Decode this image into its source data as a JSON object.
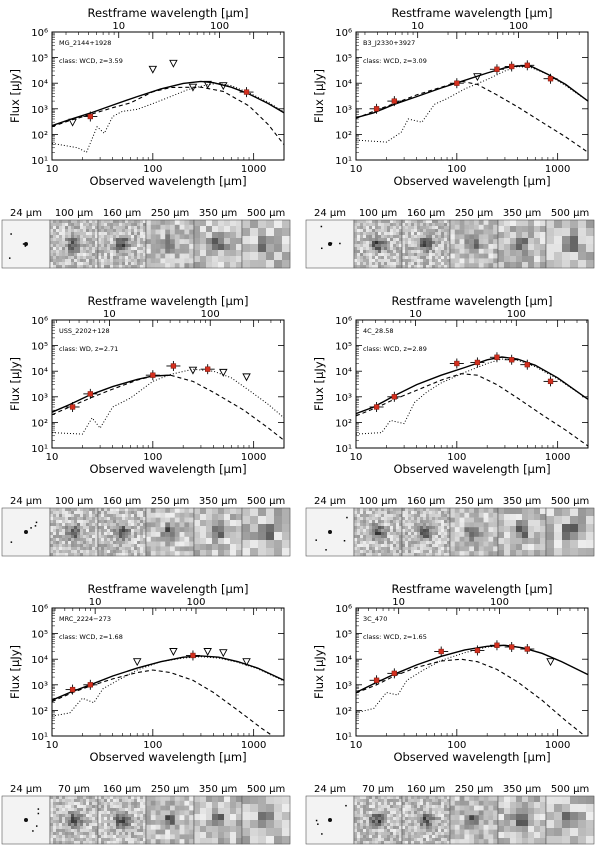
{
  "figure": {
    "axis_labels": {
      "top": "Restframe wavelength [μm]",
      "bottom": "Observed wavelength [μm]",
      "left": "Flux [μJy]"
    },
    "x_ticks": [
      "10",
      "100",
      "1000"
    ],
    "top_ticks": [
      "10",
      "100"
    ],
    "y_ticks": [
      "10¹",
      "10²",
      "10³",
      "10⁴",
      "10⁵",
      "10⁶"
    ]
  },
  "chart_data": [
    {
      "type": "scatter",
      "name": "MG_2144+1928",
      "class_text": "class: WCD, z=3.59",
      "z": 3.59,
      "xlim": [
        10,
        2000
      ],
      "ylim": [
        10,
        1000000
      ],
      "xscale": "log",
      "yscale": "log",
      "detections": [
        {
          "x": 24,
          "y": 500
        },
        {
          "x": 850,
          "y": 4500
        }
      ],
      "upper_limits": [
        {
          "x": 16,
          "y": 300
        },
        {
          "x": 100,
          "y": 35000
        },
        {
          "x": 160,
          "y": 60000
        },
        {
          "x": 250,
          "y": 7000
        },
        {
          "x": 350,
          "y": 9000
        },
        {
          "x": 500,
          "y": 8000
        }
      ],
      "total_curve": [
        [
          10,
          220
        ],
        [
          15,
          380
        ],
        [
          24,
          680
        ],
        [
          40,
          1400
        ],
        [
          70,
          3000
        ],
        [
          120,
          6000
        ],
        [
          200,
          9800
        ],
        [
          300,
          11800
        ],
        [
          400,
          10500
        ],
        [
          600,
          7000
        ],
        [
          900,
          3800
        ],
        [
          1400,
          1600
        ],
        [
          2000,
          700
        ]
      ],
      "agn_curve": [
        [
          10,
          200
        ],
        [
          15,
          350
        ],
        [
          24,
          600
        ],
        [
          40,
          1100
        ],
        [
          60,
          1700
        ],
        [
          100,
          4600
        ],
        [
          150,
          6800
        ],
        [
          300,
          7000
        ],
        [
          500,
          4800
        ],
        [
          900,
          1300
        ],
        [
          1400,
          240
        ],
        [
          2000,
          40
        ]
      ],
      "sf_curve": [
        [
          10,
          45
        ],
        [
          18,
          30
        ],
        [
          22,
          20
        ],
        [
          28,
          200
        ],
        [
          33,
          110
        ],
        [
          40,
          500
        ],
        [
          50,
          800
        ],
        [
          70,
          950
        ],
        [
          100,
          1600
        ],
        [
          150,
          3000
        ],
        [
          220,
          5500
        ],
        [
          350,
          8800
        ],
        [
          450,
          9800
        ],
        [
          600,
          8000
        ],
        [
          900,
          4200
        ],
        [
          1400,
          1800
        ],
        [
          2000,
          750
        ]
      ],
      "thumbs": [
        "24 μm",
        "100 μm",
        "160 μm",
        "250 μm",
        "350 μm",
        "500 μm"
      ]
    },
    {
      "type": "scatter",
      "name": "B3_J2330+3927",
      "class_text": "class: WCD, z=3.09",
      "z": 3.09,
      "xlim": [
        10,
        2000
      ],
      "ylim": [
        10,
        1000000
      ],
      "xscale": "log",
      "yscale": "log",
      "detections": [
        {
          "x": 16,
          "y": 1000
        },
        {
          "x": 24,
          "y": 2000
        },
        {
          "x": 100,
          "y": 10000
        },
        {
          "x": 250,
          "y": 35000
        },
        {
          "x": 350,
          "y": 45000
        },
        {
          "x": 500,
          "y": 50000
        },
        {
          "x": 850,
          "y": 15000
        }
      ],
      "upper_limits": [
        {
          "x": 160,
          "y": 18000
        }
      ],
      "total_curve": [
        [
          10,
          450
        ],
        [
          15,
          700
        ],
        [
          24,
          1500
        ],
        [
          40,
          3000
        ],
        [
          70,
          6500
        ],
        [
          120,
          13000
        ],
        [
          200,
          25000
        ],
        [
          300,
          40000
        ],
        [
          400,
          48000
        ],
        [
          550,
          45000
        ],
        [
          800,
          22000
        ],
        [
          1200,
          9000
        ],
        [
          2000,
          2000
        ]
      ],
      "agn_curve": [
        [
          10,
          420
        ],
        [
          16,
          900
        ],
        [
          24,
          1600
        ],
        [
          40,
          3500
        ],
        [
          70,
          7000
        ],
        [
          110,
          12000
        ],
        [
          160,
          9000
        ],
        [
          250,
          3500
        ],
        [
          400,
          1200
        ],
        [
          700,
          300
        ],
        [
          1200,
          80
        ],
        [
          2000,
          20
        ]
      ],
      "sf_curve": [
        [
          10,
          60
        ],
        [
          20,
          50
        ],
        [
          28,
          120
        ],
        [
          33,
          400
        ],
        [
          45,
          300
        ],
        [
          60,
          1500
        ],
        [
          80,
          2500
        ],
        [
          120,
          6000
        ],
        [
          200,
          14000
        ],
        [
          300,
          30000
        ],
        [
          400,
          45000
        ],
        [
          550,
          40000
        ],
        [
          800,
          22000
        ],
        [
          1200,
          8000
        ],
        [
          2000,
          2000
        ]
      ],
      "thumbs": [
        "24 μm",
        "100 μm",
        "160 μm",
        "250 μm",
        "350 μm",
        "500 μm"
      ]
    },
    {
      "type": "scatter",
      "name": "USS_2202+128",
      "class_text": "class: WD, z=2.71",
      "z": 2.71,
      "xlim": [
        10,
        2000
      ],
      "ylim": [
        10,
        1000000
      ],
      "xscale": "log",
      "yscale": "log",
      "detections": [
        {
          "x": 16,
          "y": 400
        },
        {
          "x": 24,
          "y": 1300
        },
        {
          "x": 100,
          "y": 7000
        },
        {
          "x": 160,
          "y": 16000
        },
        {
          "x": 350,
          "y": 12000
        }
      ],
      "upper_limits": [
        {
          "x": 250,
          "y": 11000
        },
        {
          "x": 500,
          "y": 9000
        },
        {
          "x": 850,
          "y": 6000
        }
      ],
      "total_curve": [
        [
          10,
          250
        ],
        [
          15,
          500
        ],
        [
          24,
          1200
        ],
        [
          40,
          2500
        ],
        [
          70,
          4800
        ],
        [
          100,
          6500
        ],
        [
          150,
          7000
        ]
      ],
      "agn_curve": [
        [
          10,
          200
        ],
        [
          16,
          450
        ],
        [
          24,
          900
        ],
        [
          40,
          2000
        ],
        [
          70,
          4500
        ],
        [
          100,
          6500
        ],
        [
          150,
          7000
        ],
        [
          250,
          4000
        ],
        [
          400,
          1500
        ],
        [
          800,
          300
        ],
        [
          1400,
          60
        ],
        [
          2000,
          20
        ]
      ],
      "sf_curve": [
        [
          10,
          40
        ],
        [
          20,
          35
        ],
        [
          25,
          150
        ],
        [
          30,
          60
        ],
        [
          40,
          400
        ],
        [
          60,
          900
        ],
        [
          100,
          4000
        ],
        [
          150,
          7500
        ],
        [
          250,
          12000
        ],
        [
          400,
          10000
        ],
        [
          600,
          5500
        ],
        [
          900,
          1800
        ],
        [
          1400,
          500
        ],
        [
          2000,
          150
        ]
      ],
      "thumbs": [
        "24 μm",
        "100 μm",
        "160 μm",
        "250 μm",
        "350 μm",
        "500 μm"
      ]
    },
    {
      "type": "scatter",
      "name": "4C_28.58",
      "class_text": "class: WCD, z=2.89",
      "z": 2.89,
      "xlim": [
        10,
        2000
      ],
      "ylim": [
        10,
        1000000
      ],
      "xscale": "log",
      "yscale": "log",
      "detections": [
        {
          "x": 16,
          "y": 400
        },
        {
          "x": 24,
          "y": 1000
        },
        {
          "x": 100,
          "y": 20000
        },
        {
          "x": 160,
          "y": 22000
        },
        {
          "x": 250,
          "y": 35000
        },
        {
          "x": 350,
          "y": 28000
        },
        {
          "x": 500,
          "y": 18000
        },
        {
          "x": 850,
          "y": 4000
        }
      ],
      "upper_limits": [],
      "total_curve": [
        [
          10,
          220
        ],
        [
          15,
          400
        ],
        [
          24,
          1100
        ],
        [
          40,
          3000
        ],
        [
          70,
          7000
        ],
        [
          120,
          14000
        ],
        [
          200,
          28000
        ],
        [
          280,
          36000
        ],
        [
          400,
          30000
        ],
        [
          600,
          17000
        ],
        [
          1000,
          5500
        ],
        [
          2000,
          800
        ]
      ],
      "agn_curve": [
        [
          10,
          180
        ],
        [
          16,
          380
        ],
        [
          24,
          800
        ],
        [
          40,
          1800
        ],
        [
          70,
          4500
        ],
        [
          110,
          8000
        ],
        [
          160,
          7000
        ],
        [
          250,
          3000
        ],
        [
          400,
          900
        ],
        [
          700,
          200
        ],
        [
          1200,
          50
        ],
        [
          2000,
          12
        ]
      ],
      "sf_curve": [
        [
          10,
          35
        ],
        [
          18,
          40
        ],
        [
          22,
          120
        ],
        [
          30,
          90
        ],
        [
          38,
          600
        ],
        [
          50,
          1500
        ],
        [
          70,
          3500
        ],
        [
          120,
          9000
        ],
        [
          200,
          20000
        ],
        [
          280,
          30000
        ],
        [
          400,
          27000
        ],
        [
          600,
          15000
        ],
        [
          1000,
          5000
        ],
        [
          2000,
          800
        ]
      ],
      "thumbs": [
        "24 μm",
        "100 μm",
        "160 μm",
        "250 μm",
        "350 μm",
        "500 μm"
      ]
    },
    {
      "type": "scatter",
      "name": "MRC_2224−273",
      "class_text": "class: WCD, z=1.68",
      "z": 1.68,
      "xlim": [
        10,
        2000
      ],
      "ylim": [
        10,
        1000000
      ],
      "xscale": "log",
      "yscale": "log",
      "detections": [
        {
          "x": 16,
          "y": 650
        },
        {
          "x": 24,
          "y": 1000
        },
        {
          "x": 250,
          "y": 14000
        }
      ],
      "upper_limits": [
        {
          "x": 70,
          "y": 8000
        },
        {
          "x": 160,
          "y": 20000
        },
        {
          "x": 350,
          "y": 20000
        },
        {
          "x": 500,
          "y": 18000
        },
        {
          "x": 850,
          "y": 8000
        }
      ],
      "total_curve": [
        [
          10,
          250
        ],
        [
          15,
          500
        ],
        [
          24,
          1000
        ],
        [
          40,
          2200
        ],
        [
          70,
          4500
        ],
        [
          120,
          8000
        ],
        [
          200,
          12000
        ],
        [
          300,
          13500
        ],
        [
          450,
          12000
        ],
        [
          700,
          8000
        ],
        [
          1100,
          4500
        ],
        [
          2000,
          1500
        ]
      ],
      "agn_curve": [
        [
          10,
          220
        ],
        [
          16,
          500
        ],
        [
          24,
          900
        ],
        [
          40,
          1700
        ],
        [
          70,
          3000
        ],
        [
          100,
          3800
        ],
        [
          150,
          3000
        ],
        [
          250,
          1500
        ],
        [
          400,
          500
        ],
        [
          700,
          100
        ],
        [
          1200,
          20
        ],
        [
          2000,
          5
        ]
      ],
      "sf_curve": [
        [
          10,
          60
        ],
        [
          15,
          80
        ],
        [
          20,
          300
        ],
        [
          26,
          200
        ],
        [
          32,
          700
        ],
        [
          45,
          1500
        ],
        [
          70,
          3800
        ],
        [
          120,
          8000
        ],
        [
          200,
          11000
        ],
        [
          300,
          12500
        ],
        [
          450,
          11000
        ],
        [
          700,
          7500
        ],
        [
          1100,
          4200
        ],
        [
          2000,
          1400
        ]
      ],
      "thumbs": [
        "24 μm",
        "70 μm",
        "160 μm",
        "250 μm",
        "350 μm",
        "500 μm"
      ]
    },
    {
      "type": "scatter",
      "name": "3C_470",
      "class_text": "class: WCD, z=1.65",
      "z": 1.65,
      "xlim": [
        10,
        2000
      ],
      "ylim": [
        10,
        1000000
      ],
      "xscale": "log",
      "yscale": "log",
      "detections": [
        {
          "x": 16,
          "y": 1500
        },
        {
          "x": 24,
          "y": 2800
        },
        {
          "x": 70,
          "y": 20000
        },
        {
          "x": 160,
          "y": 22000
        },
        {
          "x": 250,
          "y": 35000
        },
        {
          "x": 350,
          "y": 30000
        },
        {
          "x": 500,
          "y": 25000
        }
      ],
      "upper_limits": [
        {
          "x": 850,
          "y": 8000
        }
      ],
      "total_curve": [
        [
          10,
          500
        ],
        [
          15,
          1100
        ],
        [
          24,
          2600
        ],
        [
          40,
          6000
        ],
        [
          70,
          13000
        ],
        [
          120,
          23000
        ],
        [
          200,
          32000
        ],
        [
          300,
          35000
        ],
        [
          450,
          28000
        ],
        [
          700,
          17000
        ],
        [
          1100,
          8000
        ],
        [
          2000,
          2500
        ]
      ],
      "agn_curve": [
        [
          10,
          480
        ],
        [
          16,
          1000
        ],
        [
          24,
          2200
        ],
        [
          40,
          4800
        ],
        [
          70,
          8500
        ],
        [
          110,
          10000
        ],
        [
          160,
          8000
        ],
        [
          250,
          4000
        ],
        [
          400,
          1300
        ],
        [
          700,
          250
        ],
        [
          1200,
          40
        ],
        [
          2000,
          8
        ]
      ],
      "sf_curve": [
        [
          10,
          80
        ],
        [
          15,
          120
        ],
        [
          20,
          500
        ],
        [
          26,
          400
        ],
        [
          32,
          1500
        ],
        [
          45,
          3500
        ],
        [
          70,
          9000
        ],
        [
          120,
          18000
        ],
        [
          200,
          30000
        ],
        [
          300,
          35000
        ],
        [
          450,
          28000
        ],
        [
          700,
          17000
        ],
        [
          1100,
          8000
        ],
        [
          2000,
          2500
        ]
      ],
      "thumbs": [
        "24 μm",
        "70 μm",
        "160 μm",
        "250 μm",
        "350 μm",
        "500 μm"
      ]
    }
  ]
}
